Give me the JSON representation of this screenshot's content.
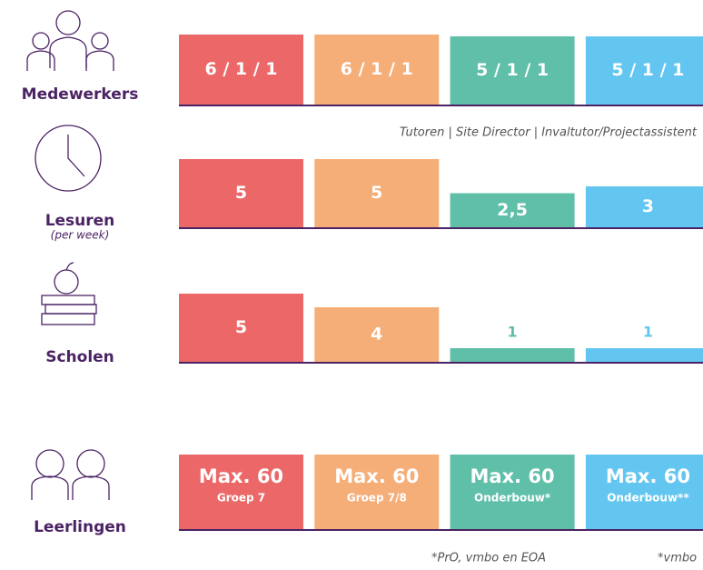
{
  "colors": [
    "#ec6868",
    "#f5ae78",
    "#5fbfa9",
    "#63c6f0"
  ],
  "rows": [
    {
      "label": "Medewerkers",
      "bars": [
        {
          "text": "6 / 1 / 1"
        },
        {
          "text": "6 / 1 / 1"
        },
        {
          "text": "5 / 1 / 1"
        },
        {
          "text": "5 / 1 / 1"
        }
      ],
      "caption": "Tutoren | Site Director | Invaltutor/Projectassistent"
    },
    {
      "label": "Lesuren",
      "sublabel": "(per week)",
      "values": [
        5,
        5,
        2.5,
        3
      ],
      "value_labels": [
        "5",
        "5",
        "2,5",
        "3"
      ]
    },
    {
      "label": "Scholen",
      "values": [
        5,
        4,
        1,
        1
      ],
      "value_labels": [
        "5",
        "4",
        "1",
        "1"
      ]
    },
    {
      "label": "Leerlingen",
      "bars": [
        {
          "text": "Max. 60",
          "sub": "Groep 7"
        },
        {
          "text": "Max. 60",
          "sub": "Groep 7/8"
        },
        {
          "text": "Max. 60",
          "sub": "Onderbouw*"
        },
        {
          "text": "Max. 60",
          "sub": "Onderbouw**"
        }
      ],
      "footnotes": [
        "*PrO, vmbo en EOA",
        "*vmbo"
      ]
    }
  ]
}
